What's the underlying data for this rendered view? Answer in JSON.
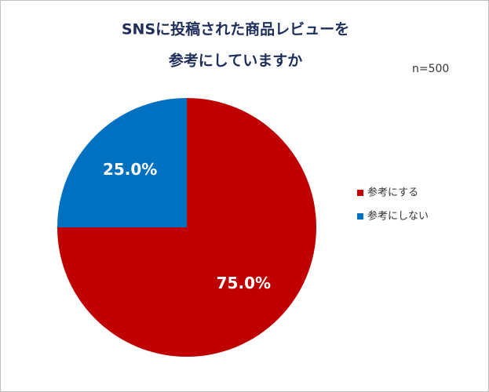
{
  "chart_data": {
    "type": "pie",
    "title": [
      "SNSに投稿された商品レビューを",
      "参考にしていますか"
    ],
    "annotation": "n=500",
    "categories": [
      "参考にする",
      "参考にしない"
    ],
    "values": [
      75,
      25
    ],
    "value_labels": [
      "75.0%",
      "25.0%"
    ],
    "colors": [
      "#c00000",
      "#0070c0"
    ],
    "legend": "right"
  }
}
